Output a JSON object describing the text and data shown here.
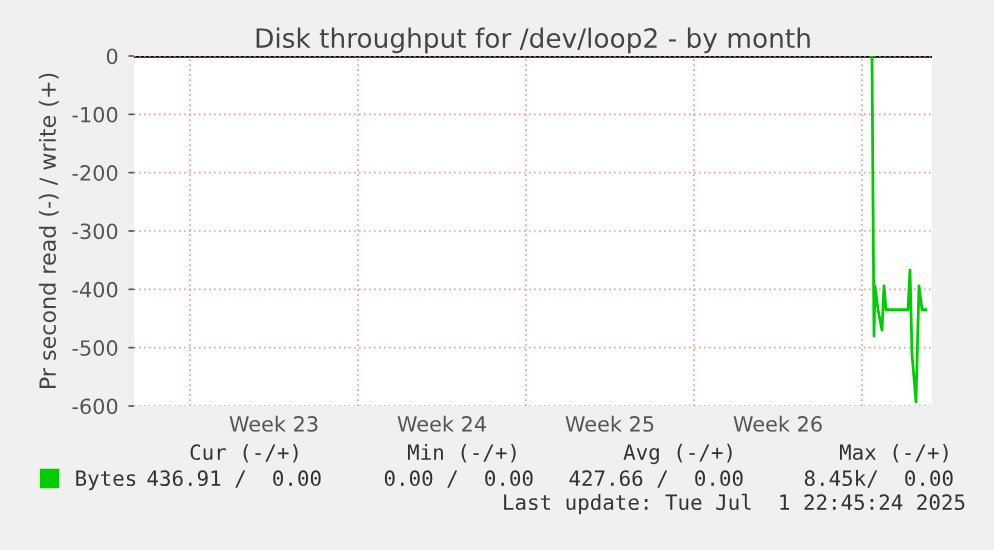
{
  "chart_data": {
    "type": "line",
    "title": "Disk throughput for /dev/loop2 - by month",
    "ylabel": "Pr second read (-) / write (+)",
    "xlim": [
      "2025-05-30T16:00",
      "2025-07-02T22:00"
    ],
    "xticks": [
      {
        "value": "2025-06-02",
        "label": null
      },
      {
        "value": "2025-06-05T12:00",
        "label": "Week 23"
      },
      {
        "value": "2025-06-09",
        "label": null
      },
      {
        "value": "2025-06-12T12:00",
        "label": "Week 24"
      },
      {
        "value": "2025-06-16",
        "label": null
      },
      {
        "value": "2025-06-19T12:00",
        "label": "Week 25"
      },
      {
        "value": "2025-06-23",
        "label": null
      },
      {
        "value": "2025-06-26T12:00",
        "label": "Week 26"
      },
      {
        "value": "2025-06-30",
        "label": null
      }
    ],
    "ylim": [
      -600,
      0
    ],
    "yticks": [
      0,
      -100,
      -200,
      -300,
      -400,
      -500,
      -600
    ],
    "grid": true,
    "legend": "bottom",
    "marker": "none",
    "line_style": "solid",
    "series": [
      {
        "name": "Bytes",
        "color": "#00cc00",
        "x": [
          "2025-06-30T10:00",
          "2025-06-30T12:00",
          "2025-06-30T13:00",
          "2025-06-30T16:00",
          "2025-06-30T20:00",
          "2025-06-30T22:00",
          "2025-07-01T00:00",
          "2025-07-01T22:00",
          "2025-07-02T00:00",
          "2025-07-02T02:00",
          "2025-07-02T06:00",
          "2025-07-02T09:00",
          "2025-07-02T12:00",
          "2025-07-02T16:00"
        ],
        "values": [
          0,
          -480,
          -394,
          -435,
          -470,
          -394,
          -435,
          -435,
          -367,
          -511,
          -593,
          -394,
          -435,
          -435
        ]
      }
    ],
    "annotations": [
      "Cur (-/+)",
      "Min (-/+)",
      "Avg (-/+)",
      "Max (-/+)",
      "436.91 /  0.00",
      "0.00 /  0.00",
      "427.66 /  0.00",
      "8.45k/  0.00",
      "Last update: Tue Jul  1 22:45:24 2025"
    ]
  }
}
